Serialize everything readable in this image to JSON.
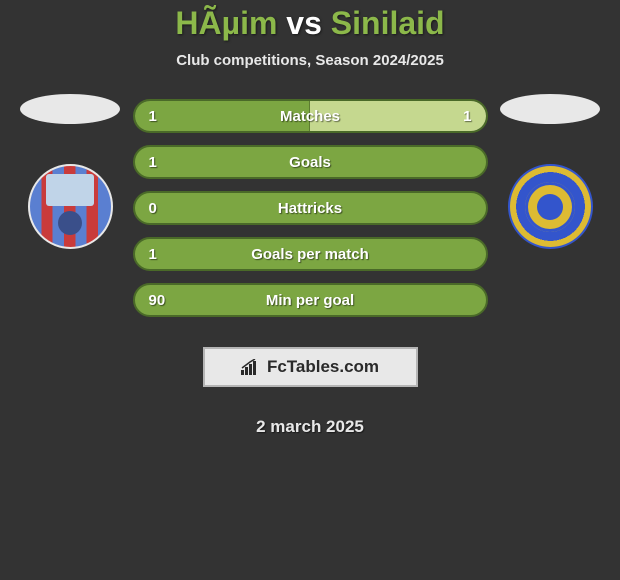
{
  "title": {
    "player1": "HÃµim",
    "vs": "vs",
    "player2": "Sinilaid",
    "color_p1": "#8cb84a",
    "color_p2": "#8cb84a"
  },
  "subtitle": "Club competitions, Season 2024/2025",
  "teams": {
    "left": {
      "flag_color": "#e8e8e8",
      "logo_name": "paide-linnameeskond-logo"
    },
    "right": {
      "flag_color": "#e8e8e8",
      "logo_name": "kuressaare-logo"
    }
  },
  "stats": [
    {
      "label": "Matches",
      "left_val": "1",
      "right_val": "1",
      "left_pct": 50,
      "bg_full": false
    },
    {
      "label": "Goals",
      "left_val": "1",
      "right_val": "",
      "left_pct": 100,
      "bg_full": true
    },
    {
      "label": "Hattricks",
      "left_val": "0",
      "right_val": "",
      "left_pct": 100,
      "bg_full": true
    },
    {
      "label": "Goals per match",
      "left_val": "1",
      "right_val": "",
      "left_pct": 100,
      "bg_full": true
    },
    {
      "label": "Min per goal",
      "left_val": "90",
      "right_val": "",
      "left_pct": 100,
      "bg_full": true
    }
  ],
  "colors": {
    "left_fill": "#7ca642",
    "right_fill": "#c5d88f",
    "bar_border": "#4a6a28",
    "background": "#333333",
    "text": "#ffffff"
  },
  "brand": {
    "icon_name": "chart-icon",
    "text": "FcTables.com"
  },
  "date": "2 march 2025"
}
